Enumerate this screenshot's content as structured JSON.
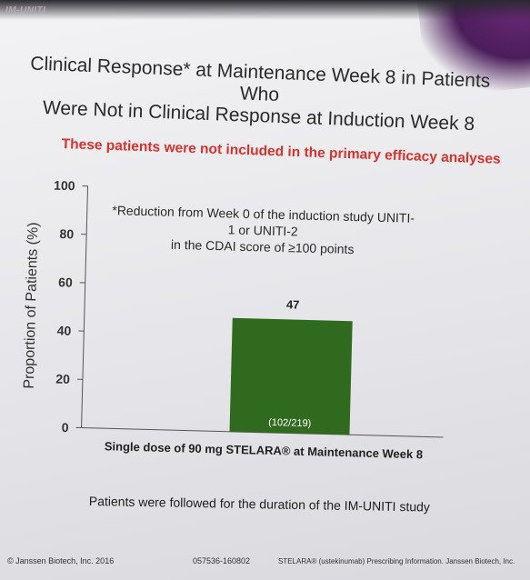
{
  "brand": "IM-UNITI",
  "title_line1": "Clinical Response* at Maintenance Week 8 in Patients Who",
  "title_line2": "Were Not in Clinical Response at Induction Week 8",
  "subtitle": "These patients were not included in the primary efficacy analyses",
  "footnote_line1": "*Reduction from Week 0 of the induction study UNITI-1 or UNITI-2",
  "footnote_line2": "in the CDAI score of ≥100 points",
  "bottom_note": "Patients were followed for the duration of the IM-UNITI study",
  "footer": {
    "copyright": "© Janssen Biotech, Inc. 2016",
    "code": "057536-160802",
    "pi": "STELARA® (ustekinumab) Prescribing Information. Janssen Biotech, Inc."
  },
  "colors": {
    "bar": "#2f6a1f",
    "subtitle": "#d8322c",
    "accent": "#4b1d5a"
  },
  "chart_data": {
    "type": "bar",
    "ylabel": "Proportion of Patients (%)",
    "xlabel": "",
    "ylim": [
      0,
      100
    ],
    "yticks": [
      0,
      20,
      40,
      60,
      80,
      100
    ],
    "categories": [
      "Single dose of 90 mg STELARA® at Maintenance Week 8"
    ],
    "values": [
      47
    ],
    "value_labels": [
      "47"
    ],
    "inner_labels": [
      "(102/219)"
    ],
    "grid": false
  }
}
